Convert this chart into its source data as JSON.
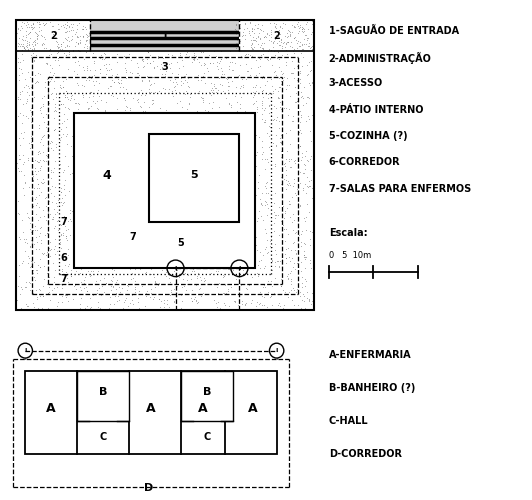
{
  "bg_color": "#ffffff",
  "legend1": [
    "1-SAGUÃO DE ENTRADA",
    "2-ADMINISTRAÇÃO",
    "3-ACESSO",
    "4-PÁTIO INTERNO",
    "5-COZINHA (?)",
    "6-CORREDOR",
    "7-SALAS PARA ENFERMOS"
  ],
  "legend2": [
    "A-ENFERMARIA",
    "B-BANHEIRO (?)",
    "C-HALL",
    "D-CORREDOR"
  ],
  "escala_text": "Escala:",
  "escala_nums": "0   5  10m",
  "font_size_legend": 7.0,
  "font_size_labels": 7.5
}
